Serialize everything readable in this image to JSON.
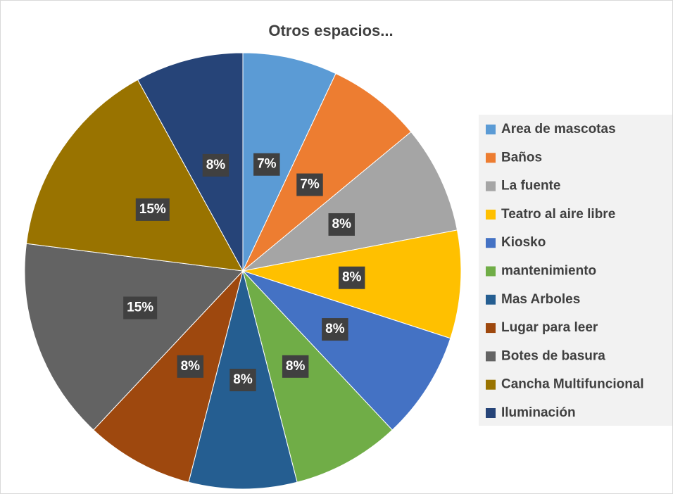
{
  "chart_data": {
    "type": "pie",
    "title": "Otros espacios...",
    "categories": [
      "Area de mascotas",
      "Baños",
      "La fuente",
      "Teatro al aire libre",
      "Kiosko",
      "mantenimiento",
      "Mas Arboles",
      "Lugar para leer",
      "Botes de basura",
      "Cancha Multifuncional",
      "Iluminación"
    ],
    "values": [
      7,
      7,
      8,
      8,
      8,
      8,
      8,
      8,
      15,
      15,
      8
    ],
    "value_labels": [
      "7%",
      "7%",
      "8%",
      "8%",
      "8%",
      "8%",
      "8%",
      "8%",
      "15%",
      "15%",
      "8%"
    ],
    "colors": [
      "#5b9bd5",
      "#ed7d31",
      "#a5a5a5",
      "#ffc000",
      "#4472c4",
      "#70ad47",
      "#255e91",
      "#9e480e",
      "#636363",
      "#997300",
      "#264478"
    ],
    "legend": "right"
  }
}
